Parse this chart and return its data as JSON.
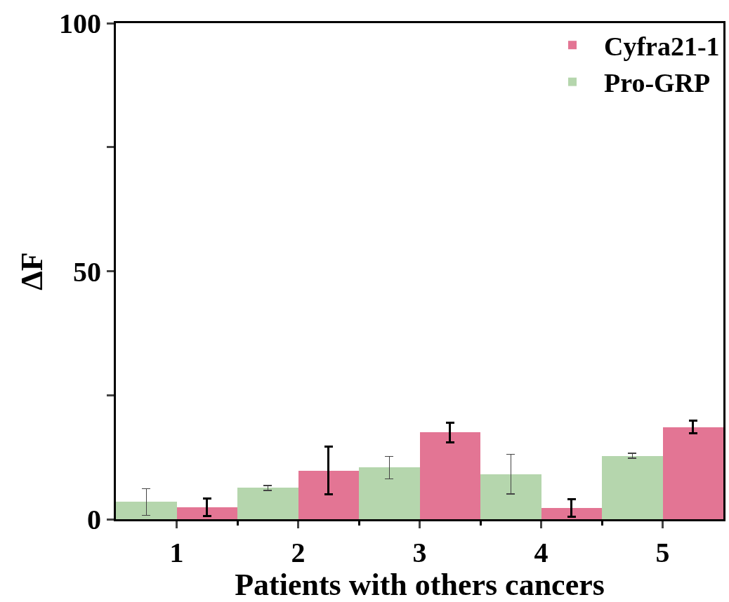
{
  "chart_data": {
    "type": "bar",
    "xlabel": "Patients with others cancers",
    "ylabel": "ΔF",
    "categories": [
      "1",
      "2",
      "3",
      "4",
      "5"
    ],
    "series": [
      {
        "name": "Pro-GRP",
        "color": "#b5d6ad",
        "values": [
          3.5,
          6.3,
          10.4,
          9.1,
          12.8
        ],
        "errors": [
          2.7,
          0.5,
          2.3,
          4,
          0.5
        ]
      },
      {
        "name": "Cyfra21-1",
        "color": "#e37594",
        "values": [
          2.4,
          9.8,
          17.5,
          2.3,
          18.6
        ],
        "errors": [
          1.8,
          4.8,
          2,
          1.8,
          1.3
        ]
      }
    ],
    "ylim": [
      0,
      100
    ],
    "yticks": [
      0,
      {
        "value": 25,
        "label": null
      },
      50,
      {
        "value": 75,
        "label": null
      },
      100
    ],
    "legend": "top right"
  }
}
